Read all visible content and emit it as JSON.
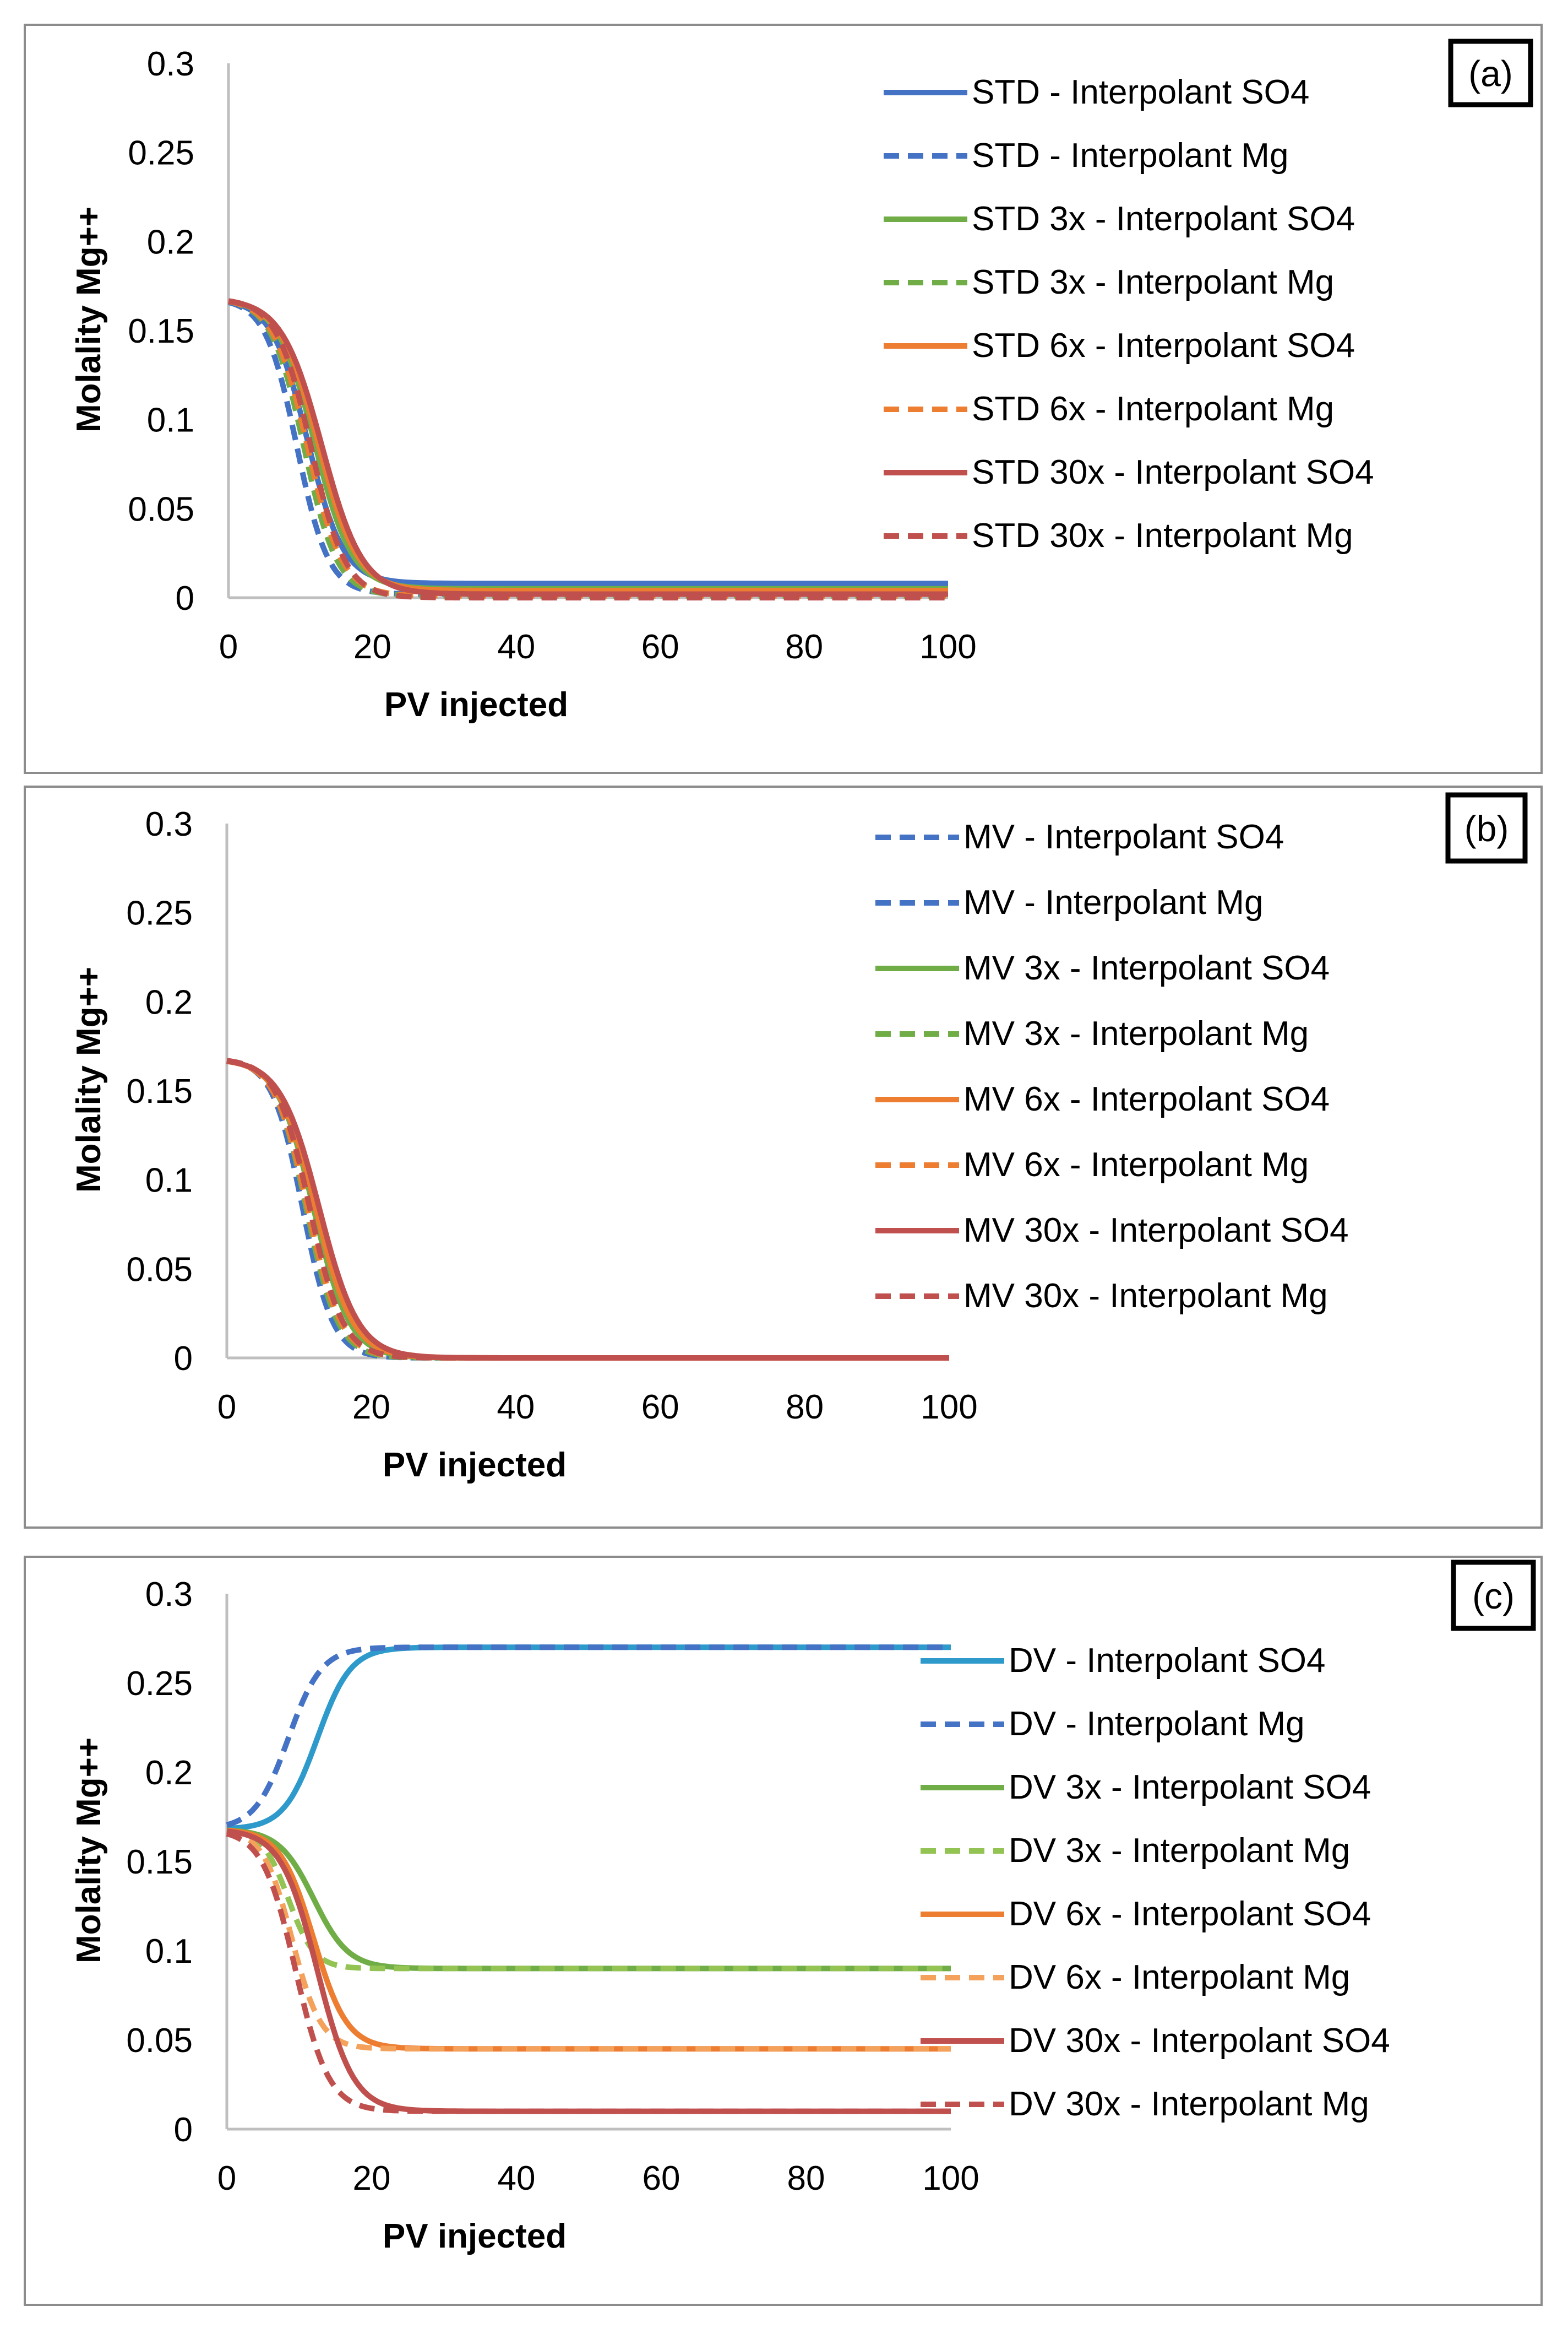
{
  "chart_data": [
    {
      "type": "line",
      "panel_label": "(a)",
      "xlabel": "PV injected",
      "ylabel": "Molality Mg++",
      "xlim": [
        0,
        100
      ],
      "ylim": [
        0,
        0.3
      ],
      "xticks": [
        "0",
        "20",
        "40",
        "60",
        "80",
        "100"
      ],
      "yticks": [
        "0",
        "0.05",
        "0.1",
        "0.15",
        "0.2",
        "0.25",
        "0.3"
      ],
      "grid": false,
      "legend_position": "right",
      "series": [
        {
          "name": "STD - Interpolant SO4",
          "color": "#4472C4",
          "dashed": false,
          "start": 0.168,
          "end": 0.008,
          "mid": 11.0,
          "k": 2.5
        },
        {
          "name": "STD - Interpolant Mg",
          "color": "#4472C4",
          "dashed": true,
          "start": 0.168,
          "end": 0.002,
          "mid": 9.5,
          "k": 2.2
        },
        {
          "name": "STD 3x - Interpolant SO4",
          "color": "#70AD47",
          "dashed": false,
          "start": 0.168,
          "end": 0.005,
          "mid": 12.0,
          "k": 2.6
        },
        {
          "name": "STD 3x - Interpolant Mg",
          "color": "#70AD47",
          "dashed": true,
          "start": 0.168,
          "end": 0.001,
          "mid": 10.5,
          "k": 2.3
        },
        {
          "name": "STD 6x - Interpolant SO4",
          "color": "#ED7D31",
          "dashed": false,
          "start": 0.168,
          "end": 0.004,
          "mid": 12.5,
          "k": 2.7
        },
        {
          "name": "STD 6x - Interpolant Mg",
          "color": "#ED7D31",
          "dashed": true,
          "start": 0.168,
          "end": 0.001,
          "mid": 11.0,
          "k": 2.4
        },
        {
          "name": "STD 30x - Interpolant SO4",
          "color": "#C0504D",
          "dashed": false,
          "start": 0.168,
          "end": 0.002,
          "mid": 13.0,
          "k": 2.8
        },
        {
          "name": "STD 30x - Interpolant Mg",
          "color": "#C0504D",
          "dashed": true,
          "start": 0.168,
          "end": 0.0,
          "mid": 11.5,
          "k": 2.4
        }
      ]
    },
    {
      "type": "line",
      "panel_label": "(b)",
      "xlabel": "PV injected",
      "ylabel": "Molality Mg++",
      "xlim": [
        0,
        100
      ],
      "ylim": [
        0,
        0.3
      ],
      "xticks": [
        "0",
        "20",
        "40",
        "60",
        "80",
        "100"
      ],
      "yticks": [
        "0",
        "0.05",
        "0.1",
        "0.15",
        "0.2",
        "0.25",
        "0.3"
      ],
      "grid": false,
      "legend_position": "right",
      "series": [
        {
          "name": "MV - Interpolant SO4",
          "color": "#4472C4",
          "dashed": true,
          "start": 0.168,
          "end": 0.0,
          "mid": 11.0,
          "k": 2.2
        },
        {
          "name": "MV - Interpolant Mg",
          "color": "#4472C4",
          "dashed": true,
          "start": 0.168,
          "end": 0.0,
          "mid": 10.5,
          "k": 2.1
        },
        {
          "name": "MV 3x - Interpolant SO4",
          "color": "#70AD47",
          "dashed": false,
          "start": 0.168,
          "end": 0.0,
          "mid": 12.0,
          "k": 2.5
        },
        {
          "name": "MV 3x - Interpolant Mg",
          "color": "#70AD47",
          "dashed": true,
          "start": 0.168,
          "end": 0.0,
          "mid": 11.0,
          "k": 2.2
        },
        {
          "name": "MV 6x - Interpolant SO4",
          "color": "#ED7D31",
          "dashed": false,
          "start": 0.168,
          "end": 0.0,
          "mid": 12.3,
          "k": 2.6
        },
        {
          "name": "MV 6x - Interpolant Mg",
          "color": "#ED7D31",
          "dashed": true,
          "start": 0.168,
          "end": 0.0,
          "mid": 11.2,
          "k": 2.3
        },
        {
          "name": "MV 30x - Interpolant SO4",
          "color": "#C0504D",
          "dashed": false,
          "start": 0.168,
          "end": 0.0,
          "mid": 12.8,
          "k": 2.7
        },
        {
          "name": "MV 30x - Interpolant Mg",
          "color": "#C0504D",
          "dashed": true,
          "start": 0.168,
          "end": 0.0,
          "mid": 11.5,
          "k": 2.3
        }
      ]
    },
    {
      "type": "line",
      "panel_label": "(c)",
      "xlabel": "PV injected",
      "ylabel": "Molality Mg++",
      "xlim": [
        0,
        100
      ],
      "ylim": [
        0,
        0.3
      ],
      "xticks": [
        "0",
        "20",
        "40",
        "60",
        "80",
        "100"
      ],
      "yticks": [
        "0",
        "0.05",
        "0.1",
        "0.15",
        "0.2",
        "0.25",
        "0.3"
      ],
      "grid": false,
      "legend_position": "right",
      "series": [
        {
          "name": "DV - Interpolant SO4",
          "color": "#2E9ACB",
          "dashed": false,
          "start": 0.168,
          "end": 0.27,
          "mid": 12.5,
          "k": 2.3
        },
        {
          "name": "DV - Interpolant Mg",
          "color": "#4472C4",
          "dashed": true,
          "start": 0.168,
          "end": 0.27,
          "mid": 8.5,
          "k": 2.3
        },
        {
          "name": "DV 3x - Interpolant SO4",
          "color": "#70AD47",
          "dashed": false,
          "start": 0.168,
          "end": 0.09,
          "mid": 12.0,
          "k": 2.4
        },
        {
          "name": "DV 3x - Interpolant Mg",
          "color": "#92C353",
          "dashed": true,
          "start": 0.168,
          "end": 0.09,
          "mid": 8.5,
          "k": 1.8
        },
        {
          "name": "DV 6x - Interpolant SO4",
          "color": "#ED7D31",
          "dashed": false,
          "start": 0.168,
          "end": 0.045,
          "mid": 12.0,
          "k": 2.3
        },
        {
          "name": "DV 6x - Interpolant Mg",
          "color": "#F4A15C",
          "dashed": true,
          "start": 0.168,
          "end": 0.045,
          "mid": 9.0,
          "k": 2.0
        },
        {
          "name": "DV 30x - Interpolant SO4",
          "color": "#C0504D",
          "dashed": false,
          "start": 0.168,
          "end": 0.01,
          "mid": 12.5,
          "k": 2.5
        },
        {
          "name": "DV 30x - Interpolant Mg",
          "color": "#C0504D",
          "dashed": true,
          "start": 0.168,
          "end": 0.01,
          "mid": 9.5,
          "k": 2.3
        }
      ]
    }
  ]
}
